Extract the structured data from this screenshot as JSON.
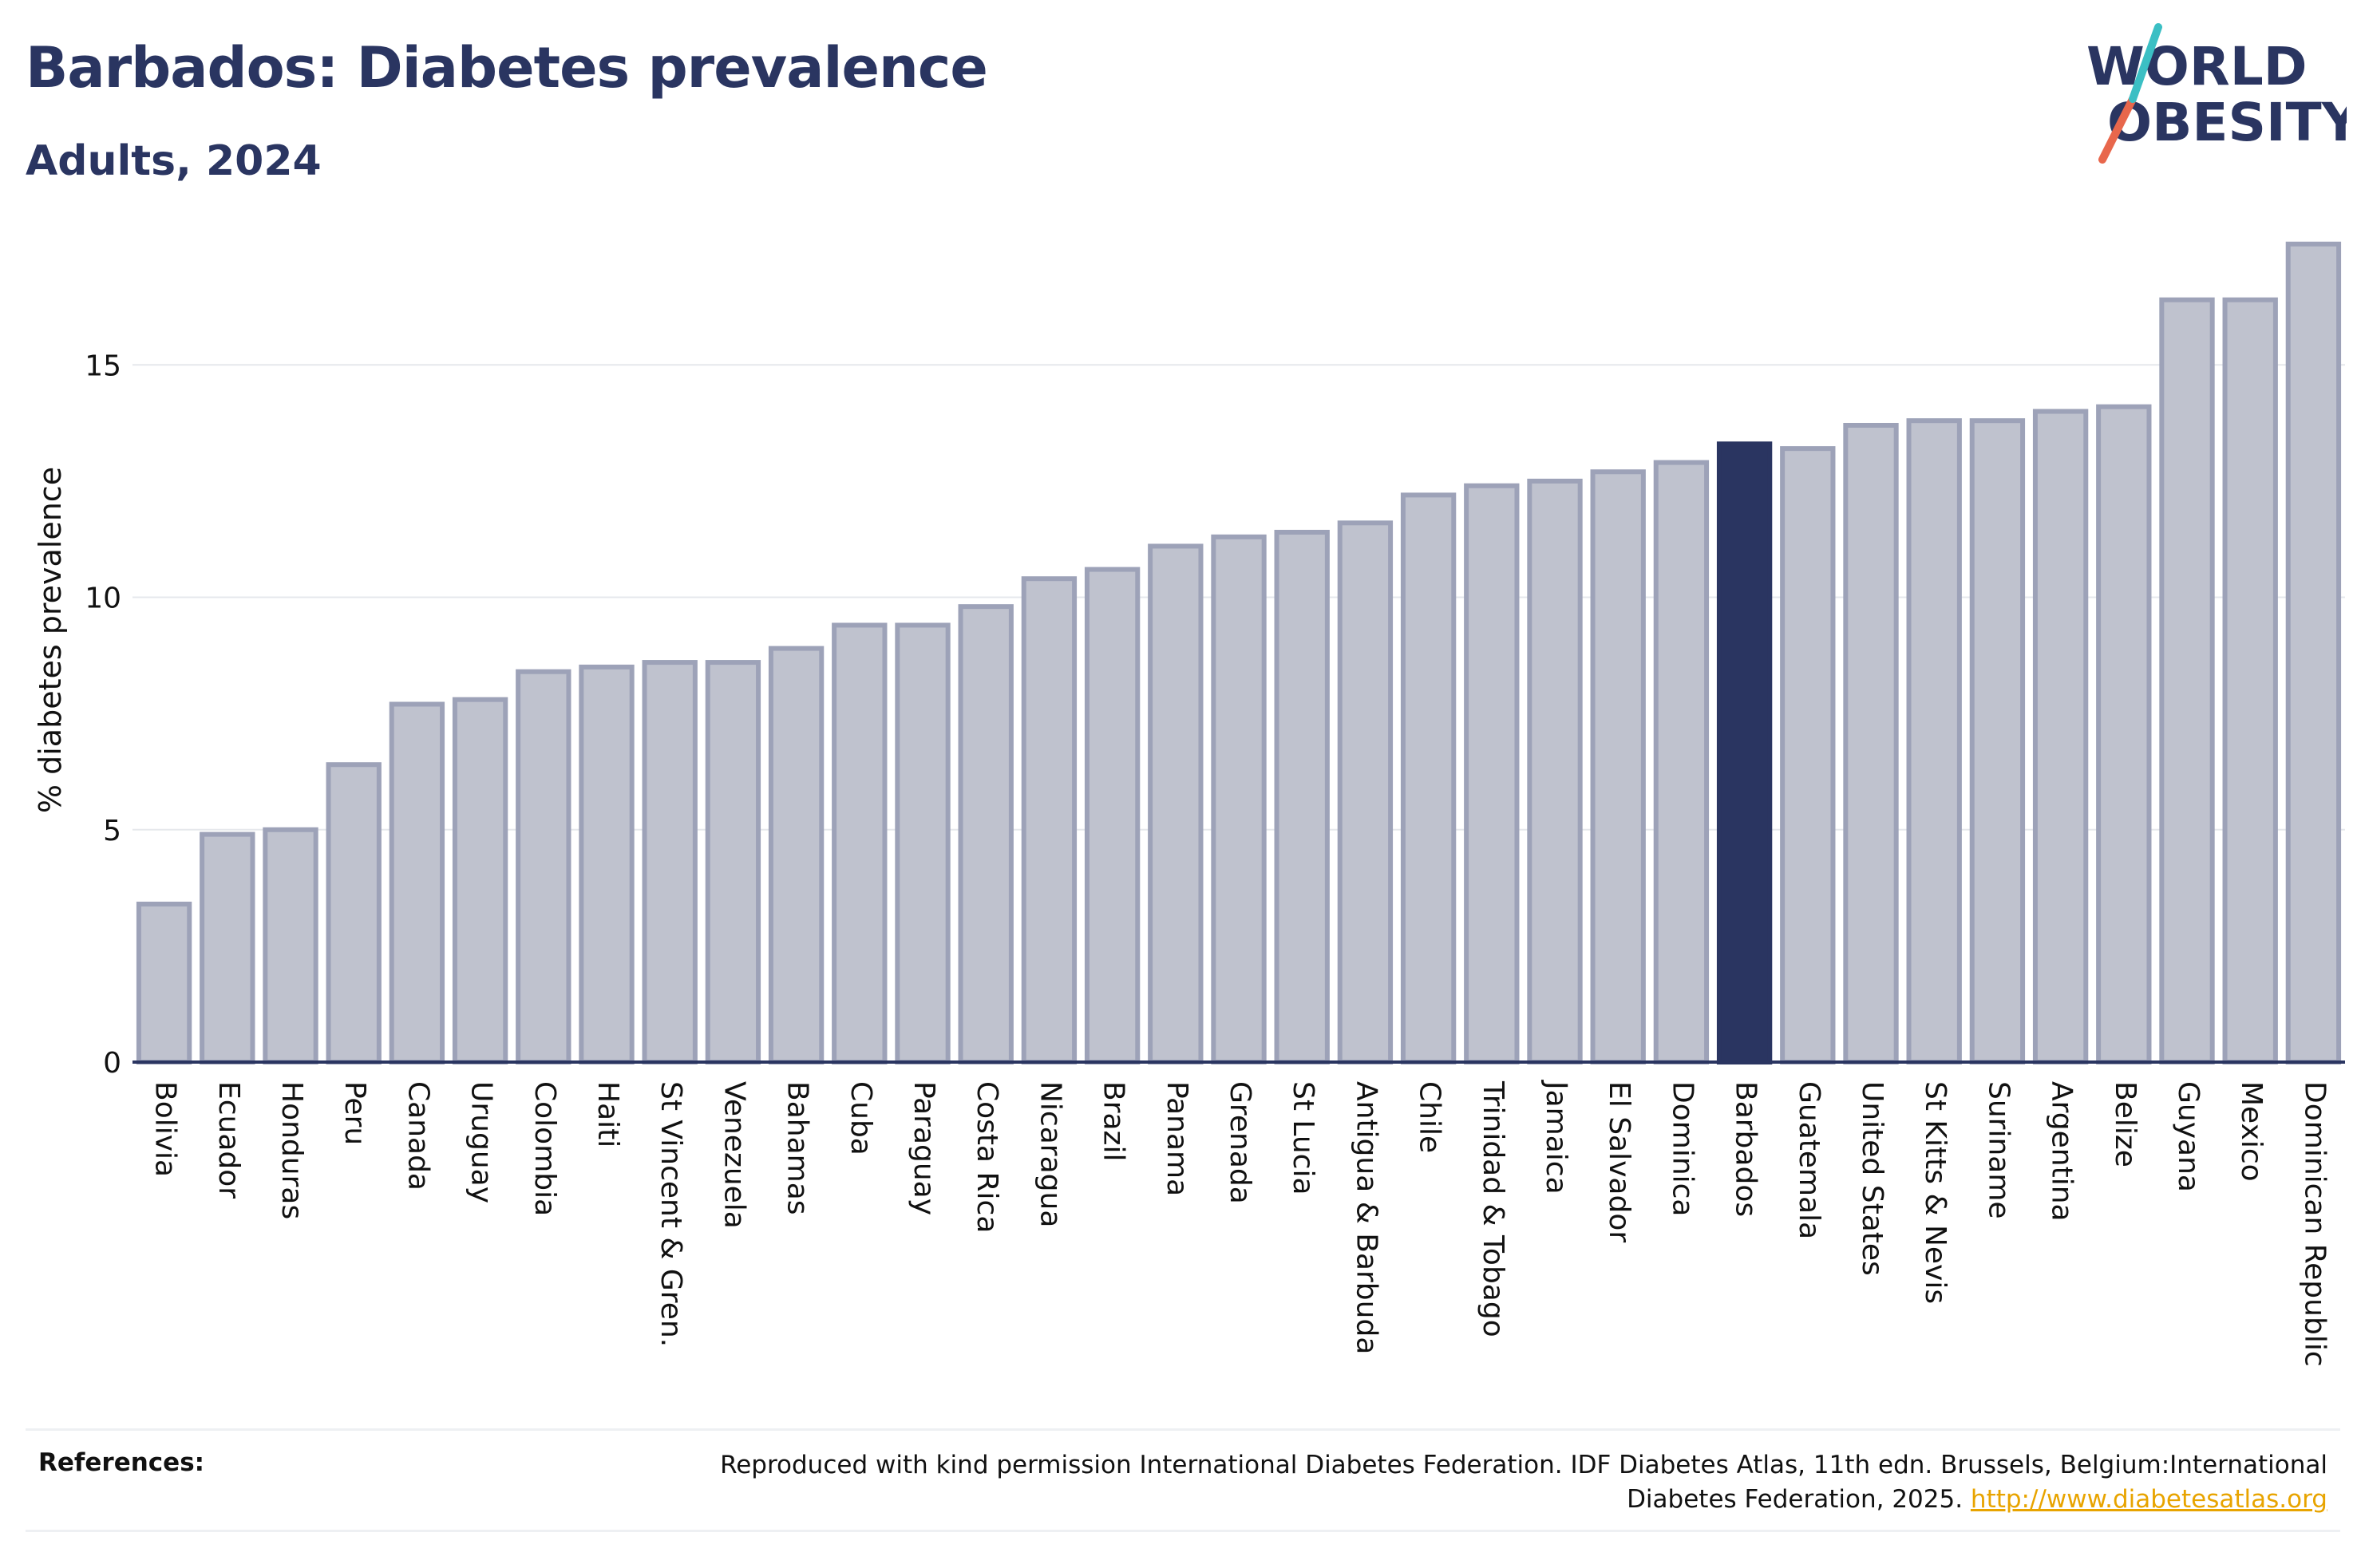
{
  "header": {
    "title": "Barbados: Diabetes prevalence",
    "subtitle": "Adults, 2024"
  },
  "logo": {
    "line1": "WORLD",
    "line2": "OBESITY",
    "text_color": "#2a3561",
    "slash_colors": [
      "#e8674c",
      "#3bbfc4"
    ]
  },
  "chart_data": {
    "type": "bar",
    "title": "Barbados: Diabetes prevalence",
    "subtitle": "Adults, 2024",
    "xlabel": "",
    "ylabel": "% diabetes prevalence",
    "ylim": [
      0,
      17.7
    ],
    "yticks": [
      0,
      5,
      10,
      15
    ],
    "grid": true,
    "highlight": "Barbados",
    "colors": {
      "bar": "#bfc2ce",
      "bar_stroke": "#9da2b8",
      "highlight": "#2a3561",
      "axis": "#2a3561",
      "grid": "#e6e8ec"
    },
    "categories": [
      "Bolivia",
      "Ecuador",
      "Honduras",
      "Peru",
      "Canada",
      "Uruguay",
      "Colombia",
      "Haiti",
      "St Vincent & Gren.",
      "Venezuela",
      "Bahamas",
      "Cuba",
      "Paraguay",
      "Costa Rica",
      "Nicaragua",
      "Brazil",
      "Panama",
      "Grenada",
      "St Lucia",
      "Antigua & Barbuda",
      "Chile",
      "Trinidad & Tobago",
      "Jamaica",
      "El Salvador",
      "Dominica",
      "Barbados",
      "Guatemala",
      "United States",
      "St Kitts & Nevis",
      "Suriname",
      "Argentina",
      "Belize",
      "Guyana",
      "Mexico",
      "Dominican Republic"
    ],
    "values": [
      3.4,
      4.9,
      5.0,
      6.4,
      7.7,
      7.8,
      8.4,
      8.5,
      8.6,
      8.6,
      8.9,
      9.4,
      9.4,
      9.8,
      10.4,
      10.6,
      11.1,
      11.3,
      11.4,
      11.6,
      12.2,
      12.4,
      12.5,
      12.7,
      12.9,
      13.3,
      13.2,
      13.7,
      13.8,
      13.8,
      14.0,
      14.1,
      16.4,
      16.4,
      17.6
    ]
  },
  "references": {
    "label": "References:",
    "text": "Reproduced with kind permission International Diabetes Federation. IDF Diabetes Atlas, 11th edn. Brussels, Belgium:International Diabetes Federation, 2025.",
    "link": "http://www.diabetesatlas.org"
  }
}
